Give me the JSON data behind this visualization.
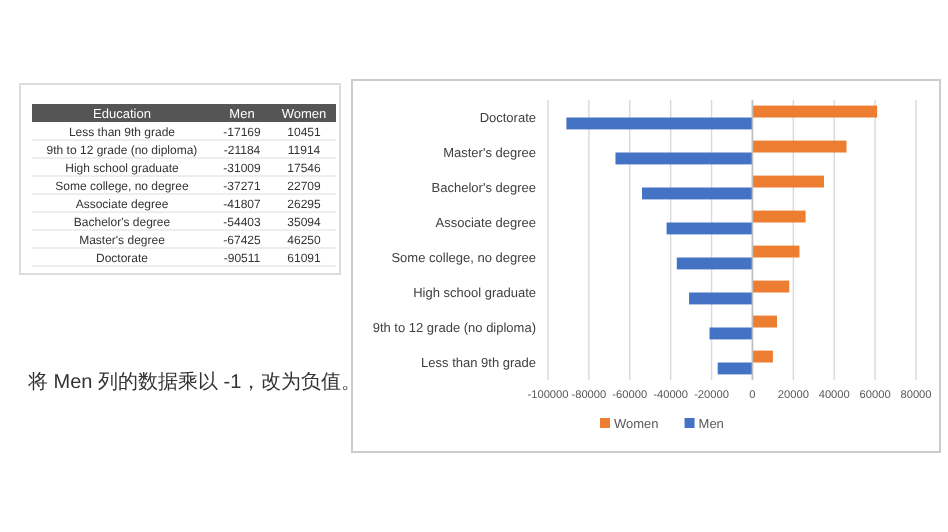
{
  "chart_data": [
    {
      "type": "other",
      "categories": [
        "Less than 9th grade",
        "9th to 12 grade (no diploma)",
        "High school graduate",
        "Some college, no degree",
        "Associate degree",
        "Bachelor's degree",
        "Master's degree",
        "Doctorate"
      ],
      "series": [
        {
          "name": "Men",
          "values": [
            -17169,
            -21184,
            -31009,
            -37271,
            -41807,
            -54403,
            -67425,
            -90511
          ]
        },
        {
          "name": "Women",
          "values": [
            10451,
            11914,
            17546,
            22709,
            26295,
            35094,
            46250,
            61091
          ]
        }
      ],
      "data_labels": true,
      "annotations": [
        "Education",
        "将 Men 列的数据乘以 -1，改为负值。"
      ]
    },
    {
      "type": "bar",
      "orientation": "horizontal",
      "categories": [
        "Doctorate",
        "Master's degree",
        "Bachelor's degree",
        "Associate degree",
        "Some college, no degree",
        "High school graduate",
        "9th to 12 grade (no diploma)",
        "Less than 9th grade"
      ],
      "series": [
        {
          "name": "Women",
          "color": "#ed7d31",
          "values": [
            61000,
            46000,
            35000,
            26000,
            23000,
            18000,
            12000,
            10000
          ]
        },
        {
          "name": "Men",
          "color": "#4472c4",
          "values": [
            -91000,
            -67000,
            -54000,
            -42000,
            -37000,
            -31000,
            -21000,
            -17000
          ]
        }
      ],
      "xlim": [
        -100000,
        80000
      ],
      "xticks": [
        -100000,
        -80000,
        -60000,
        -40000,
        -20000,
        0,
        20000,
        40000,
        60000,
        80000
      ],
      "grid": "x",
      "legend": "bottom"
    }
  ]
}
